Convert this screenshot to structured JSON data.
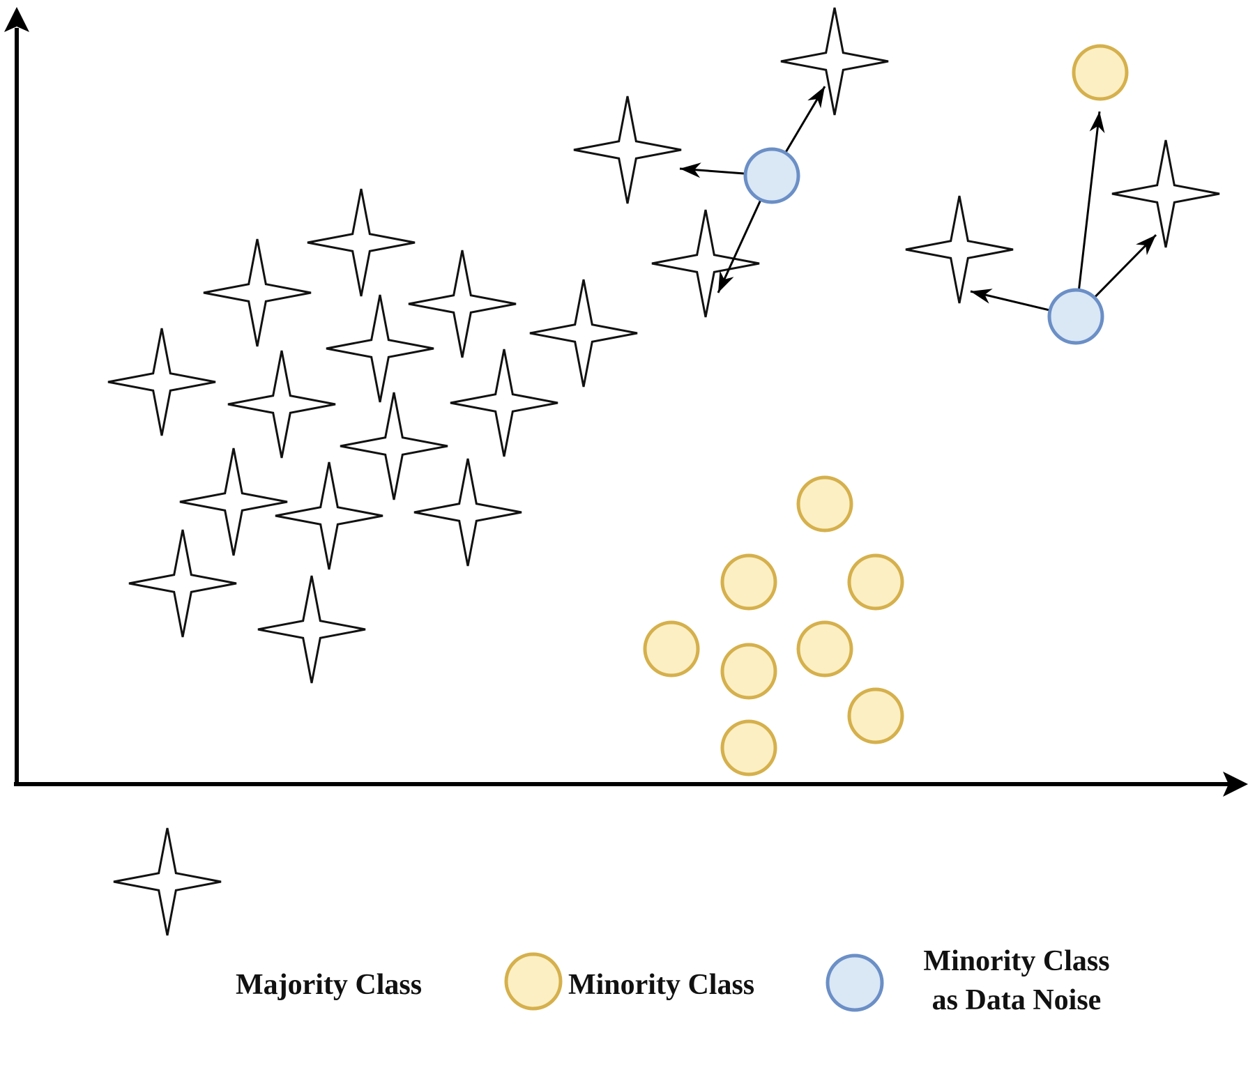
{
  "legend": {
    "majority": "Majority Class",
    "minority": "Minority Class",
    "noise_line1": "Minority Class",
    "noise_line2": "as Data Noise"
  },
  "colors": {
    "majority_fill": "#ffffff",
    "majority_stroke": "#111111",
    "minority_fill": "#fcefc4",
    "minority_stroke": "#d5b04c",
    "noise_fill": "#dae7f5",
    "noise_stroke": "#6b8fc6",
    "axis": "#000000"
  }
}
